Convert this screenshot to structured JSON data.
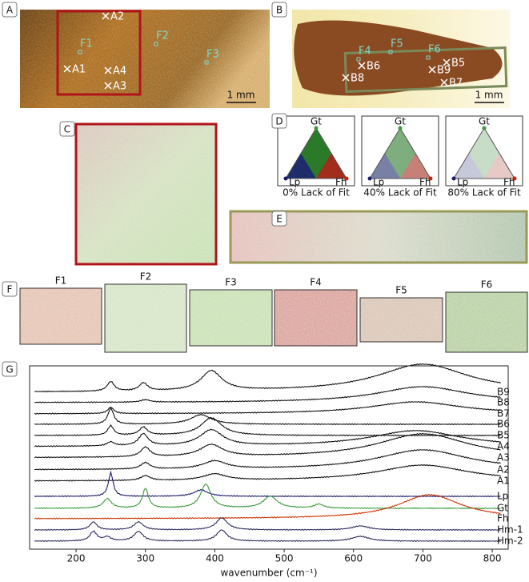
{
  "panel_letters": [
    "A",
    "B",
    "C",
    "D",
    "E",
    "F",
    "G"
  ],
  "photo_a": {
    "marks": [
      "A2",
      "F1",
      "F2",
      "F3",
      "A1",
      "A4",
      "A3"
    ],
    "scale": "1 mm"
  },
  "photo_b": {
    "marks": [
      "F4",
      "F5",
      "F6",
      "B6",
      "B5",
      "B9",
      "B8",
      "B7"
    ],
    "scale": "1 mm"
  },
  "ternary": {
    "vertices": [
      "Gt",
      "Lp",
      "Fh"
    ],
    "captions": [
      "0% Lack of Fit",
      "40% Lack of Fit",
      "80% Lack of Fit"
    ]
  },
  "fields": [
    "F1",
    "F2",
    "F3",
    "F4",
    "F5",
    "F6"
  ],
  "spectra": {
    "xlim": [
      133,
      823
    ],
    "xticks": [
      200,
      300,
      400,
      500,
      600,
      700,
      800
    ],
    "xlabel": "wavenumber (cm⁻¹)",
    "traces": [
      "B9",
      "B8",
      "B7",
      "B6",
      "B5",
      "A4",
      "A3",
      "A2",
      "A1",
      "Lp",
      "Gt",
      "Fh",
      "Hm-1",
      "Hm-2"
    ]
  }
}
